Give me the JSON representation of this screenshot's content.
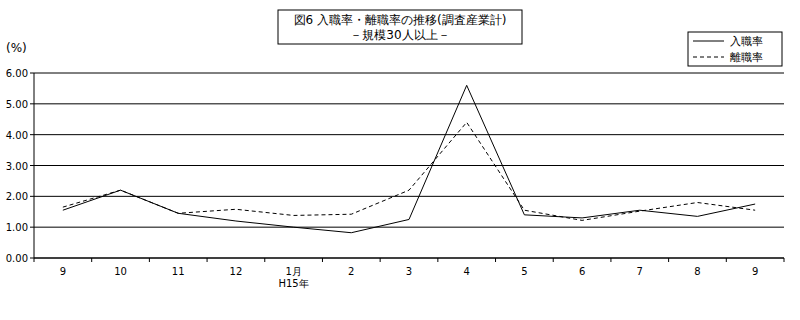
{
  "chart_data": {
    "type": "line",
    "title": "図6 入職率・離職率の推移(調査産業計)",
    "subtitle": "－規模30人以上－",
    "y_label": "(%)",
    "categories": [
      "9",
      "10",
      "11",
      "12",
      "1月\nH15年",
      "2",
      "3",
      "4",
      "5",
      "6",
      "7",
      "8",
      "9"
    ],
    "series": [
      {
        "name": "入職率",
        "color": "#000000",
        "line_style": "solid",
        "values": [
          1.55,
          2.2,
          1.45,
          1.2,
          1.0,
          0.82,
          1.25,
          5.6,
          1.4,
          1.3,
          1.55,
          1.35,
          1.75
        ]
      },
      {
        "name": "離職率",
        "color": "#000000",
        "line_style": "dashed",
        "values": [
          1.65,
          2.2,
          1.45,
          1.58,
          1.38,
          1.42,
          2.2,
          4.4,
          1.55,
          1.22,
          1.52,
          1.8,
          1.55
        ]
      }
    ],
    "ylim": [
      0,
      6
    ],
    "yticks": [
      {
        "value": 0,
        "label": "0.00"
      },
      {
        "value": 1,
        "label": "1.00"
      },
      {
        "value": 2,
        "label": "2.00"
      },
      {
        "value": 3,
        "label": "3.00"
      },
      {
        "value": 4,
        "label": "4.00"
      },
      {
        "value": 5,
        "label": "5.00"
      },
      {
        "value": 6,
        "label": "6.00"
      }
    ],
    "grid": true,
    "legend": "top-right"
  }
}
